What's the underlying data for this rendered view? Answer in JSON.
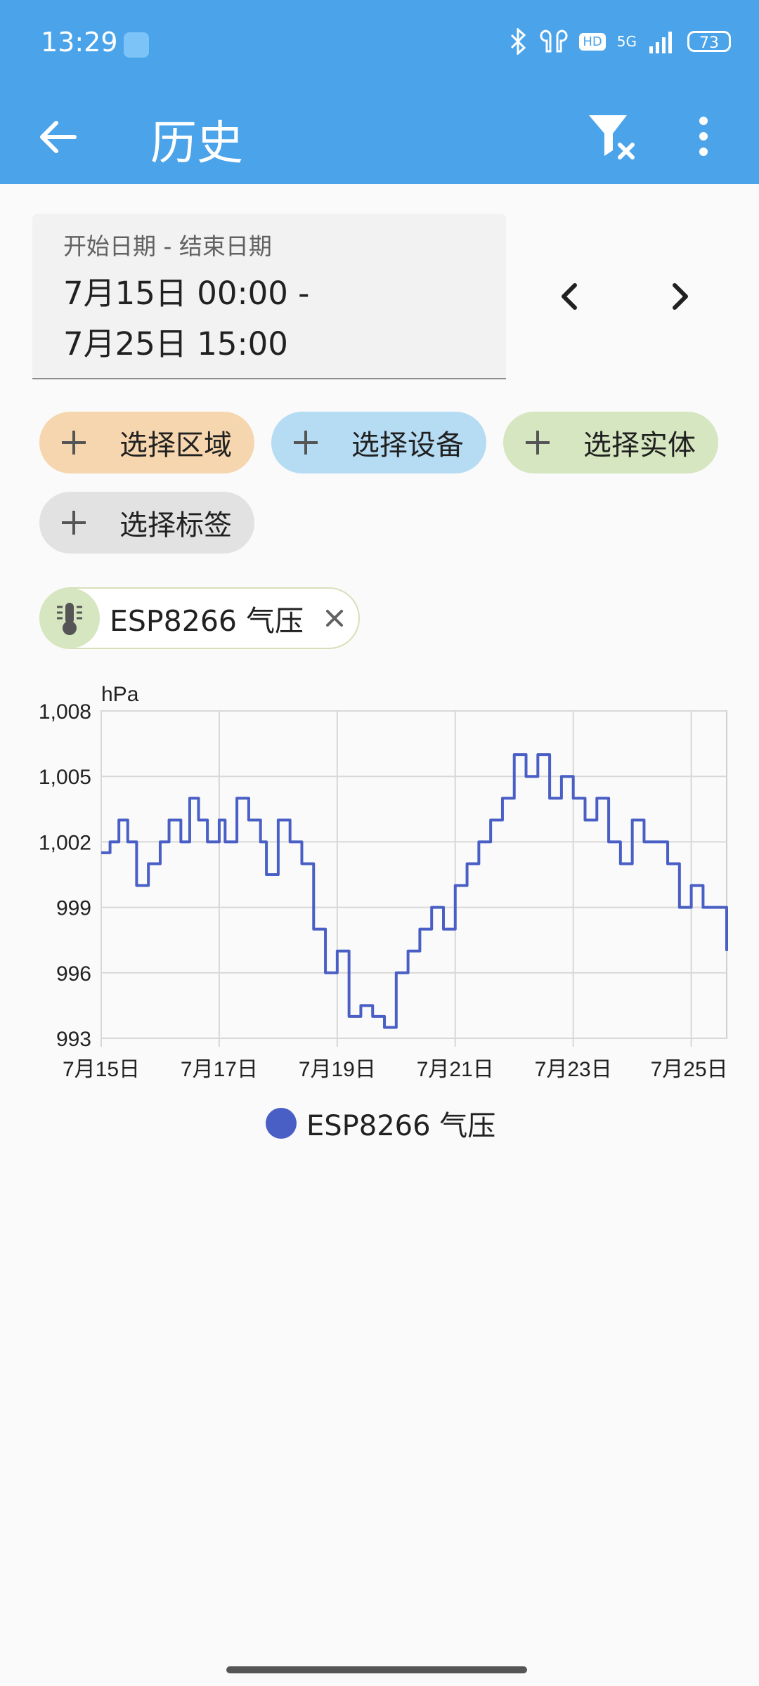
{
  "status_bar": {
    "time": "13:29",
    "network": "5G",
    "hd_badge": "HD",
    "battery": "73"
  },
  "app_bar": {
    "title": "历史",
    "back_icon": "arrow-left-icon",
    "filter_icon": "filter-clear-icon",
    "menu_icon": "more-vert-icon"
  },
  "date_range": {
    "label": "开始日期 - 结束日期",
    "value": "7月15日 00:00 -\n7月25日 15:00"
  },
  "targets": {
    "area": "选择区域",
    "device": "选择设备",
    "entity": "选择实体",
    "label": "选择标签"
  },
  "selected_entity": {
    "name": "ESP8266 气压",
    "icon": "thermometer-icon"
  },
  "colors": {
    "accent": "#4ba3ea",
    "series": "#4a5fc5"
  },
  "chart_data": {
    "type": "line",
    "ylabel": "hPa",
    "ylim": [
      993,
      1008
    ],
    "y_ticks": [
      "1,008",
      "1,005",
      "1,002",
      "999",
      "996",
      "993"
    ],
    "x_ticks": [
      "7月15日",
      "7月17日",
      "7月19日",
      "7月21日",
      "7月23日",
      "7月25日"
    ],
    "xlim": [
      0,
      10.6
    ],
    "series": [
      {
        "name": "ESP8266 气压",
        "x": [
          0,
          0.15,
          0.3,
          0.45,
          0.6,
          0.8,
          1.0,
          1.15,
          1.35,
          1.5,
          1.65,
          1.8,
          2.0,
          2.1,
          2.3,
          2.5,
          2.7,
          2.8,
          3.0,
          3.2,
          3.4,
          3.6,
          3.8,
          4.0,
          4.2,
          4.4,
          4.6,
          4.8,
          5.0,
          5.2,
          5.4,
          5.6,
          5.8,
          6.0,
          6.2,
          6.4,
          6.6,
          6.8,
          7.0,
          7.2,
          7.4,
          7.6,
          7.8,
          8.0,
          8.2,
          8.4,
          8.6,
          8.8,
          9.0,
          9.2,
          9.4,
          9.6,
          9.8,
          10.0,
          10.2,
          10.4,
          10.6
        ],
        "y": [
          1001.5,
          1002,
          1003,
          1002,
          1000,
          1001,
          1002,
          1003,
          1002,
          1004,
          1003,
          1002,
          1003,
          1002,
          1004,
          1003,
          1002,
          1000.5,
          1003,
          1002,
          1001,
          998,
          996,
          997,
          994,
          994.5,
          994,
          993.5,
          996,
          997,
          998,
          999,
          998,
          1000,
          1001,
          1002,
          1003,
          1004,
          1006,
          1005,
          1006,
          1004,
          1005,
          1004,
          1003,
          1004,
          1002,
          1001,
          1003,
          1002,
          1002,
          1001,
          999,
          1000,
          999,
          999,
          997
        ]
      }
    ]
  }
}
